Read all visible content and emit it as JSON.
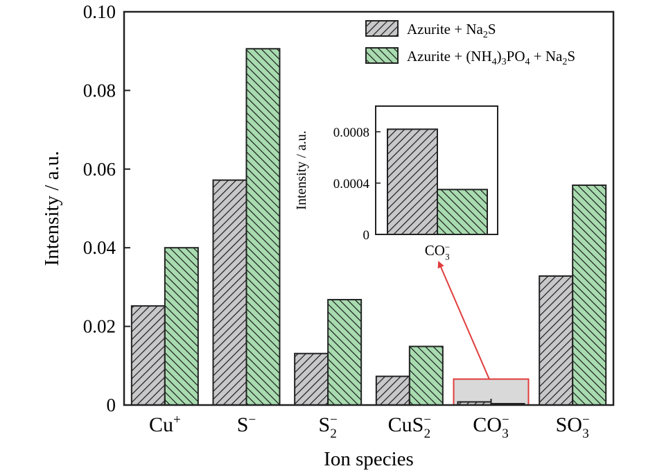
{
  "chart_data": {
    "type": "bar",
    "xlabel": "Ion species",
    "ylabel": "Intensity / a.u.",
    "ylim": [
      0,
      0.1
    ],
    "yticks": [
      "0",
      "0.02",
      "0.04",
      "0.06",
      "0.08",
      "0.10"
    ],
    "ytick_values": [
      0,
      0.02,
      0.04,
      0.06,
      0.08,
      0.1
    ],
    "categories": [
      {
        "base": "Cu",
        "sub": "",
        "sup": "+"
      },
      {
        "base": "S",
        "sub": "",
        "sup": "−"
      },
      {
        "base": "S",
        "sub": "2",
        "sup": "−"
      },
      {
        "base": "CuS",
        "sub": "2",
        "sup": "−"
      },
      {
        "base": "CO",
        "sub": "3",
        "sup": "−"
      },
      {
        "base": "SO",
        "sub": "3",
        "sup": "−"
      }
    ],
    "series": [
      {
        "name": [
          {
            "t": "Azurite + Na"
          },
          {
            "t": "2",
            "sub": true
          },
          {
            "t": "S"
          }
        ],
        "values": [
          0.0252,
          0.0572,
          0.0131,
          0.0073,
          0.0008,
          0.0328
        ],
        "fill": "#c8c8ca",
        "pattern": "hatch-gray"
      },
      {
        "name": [
          {
            "t": "Azurite + (NH"
          },
          {
            "t": "4",
            "sub": true
          },
          {
            "t": ")"
          },
          {
            "t": "3",
            "sub": true
          },
          {
            "t": "PO"
          },
          {
            "t": "4",
            "sub": true
          },
          {
            "t": " + Na"
          },
          {
            "t": "2",
            "sub": true
          },
          {
            "t": "S"
          }
        ],
        "values": [
          0.04,
          0.0906,
          0.0268,
          0.0149,
          0.00035,
          0.0559
        ],
        "fill": "#a8dcb0",
        "pattern": "hatch-green"
      }
    ],
    "legend_position": "top-right",
    "grid": false,
    "highlight": {
      "category_index": 4,
      "ymax": 0.0066,
      "border_color": "#e03c3c",
      "fill": "#d9d9d9"
    },
    "arrow_color": "#e03c3c",
    "inset": {
      "ylabel": "Intensity / a.u.",
      "ylim": [
        0,
        0.001
      ],
      "yticks": [
        "0",
        "0.0004",
        "0.0008"
      ],
      "ytick_values": [
        0,
        0.0004,
        0.0008
      ],
      "category": {
        "base": "CO",
        "sub": "3",
        "sup": "−"
      },
      "values": [
        0.00082,
        0.00035
      ]
    }
  }
}
